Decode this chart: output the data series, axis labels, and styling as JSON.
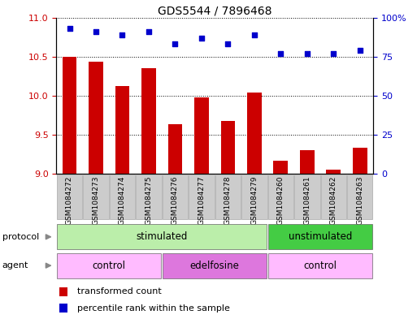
{
  "title": "GDS5544 / 7896468",
  "samples": [
    "GSM1084272",
    "GSM1084273",
    "GSM1084274",
    "GSM1084275",
    "GSM1084276",
    "GSM1084277",
    "GSM1084278",
    "GSM1084279",
    "GSM1084260",
    "GSM1084261",
    "GSM1084262",
    "GSM1084263"
  ],
  "bar_values": [
    10.5,
    10.44,
    10.12,
    10.35,
    9.64,
    9.98,
    9.68,
    10.04,
    9.17,
    9.3,
    9.05,
    9.33
  ],
  "scatter_values": [
    93,
    91,
    89,
    91,
    83,
    87,
    83,
    89,
    77,
    77,
    77,
    79
  ],
  "ylim_left": [
    9,
    11
  ],
  "ylim_right": [
    0,
    100
  ],
  "yticks_left": [
    9,
    9.5,
    10,
    10.5,
    11
  ],
  "yticks_right": [
    0,
    25,
    50,
    75,
    100
  ],
  "bar_color": "#cc0000",
  "scatter_color": "#0000cc",
  "bar_bottom": 9,
  "protocol_labels": [
    {
      "label": "stimulated",
      "start": 0,
      "end": 8,
      "color": "#bbeeaa"
    },
    {
      "label": "unstimulated",
      "start": 8,
      "end": 12,
      "color": "#44cc44"
    }
  ],
  "agent_labels": [
    {
      "label": "control",
      "start": 0,
      "end": 4,
      "color": "#ffbbff"
    },
    {
      "label": "edelfosine",
      "start": 4,
      "end": 8,
      "color": "#dd77dd"
    },
    {
      "label": "control",
      "start": 8,
      "end": 12,
      "color": "#ffbbff"
    }
  ],
  "legend_bar_label": "transformed count",
  "legend_scatter_label": "percentile rank within the sample",
  "protocol_row_label": "protocol",
  "agent_row_label": "agent",
  "background_color": "#ffffff",
  "sample_bg_color": "#cccccc",
  "grid_color": "#000000",
  "tick_color_left": "#cc0000",
  "tick_color_right": "#0000cc",
  "arrow_color": "#888888"
}
